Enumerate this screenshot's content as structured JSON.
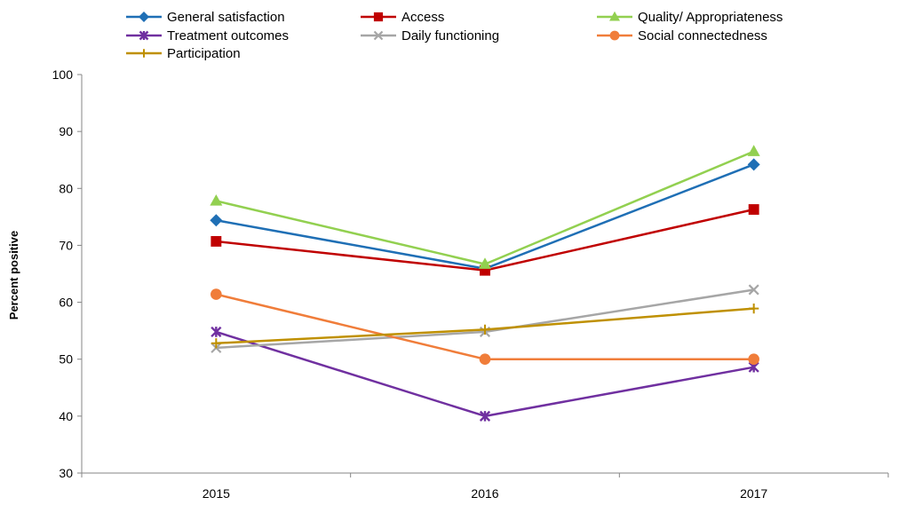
{
  "chart_data": {
    "type": "line",
    "title": "",
    "xlabel": "",
    "ylabel": "Percent positive",
    "categories": [
      "2015",
      "2016",
      "2017"
    ],
    "ylim": [
      30,
      100
    ],
    "yticks": [
      30,
      40,
      50,
      60,
      70,
      80,
      90,
      100
    ],
    "grid": false,
    "legend": "top",
    "series": [
      {
        "name": "General satisfaction",
        "values": [
          74.4,
          65.9,
          84.2
        ],
        "color": "#1f6fb5",
        "marker": "diamond"
      },
      {
        "name": "Access",
        "values": [
          70.7,
          65.6,
          76.3
        ],
        "color": "#c00000",
        "marker": "square"
      },
      {
        "name": "Quality/ Appropriateness",
        "values": [
          77.8,
          66.7,
          86.5
        ],
        "color": "#92d050",
        "marker": "triangle"
      },
      {
        "name": "Treatment outcomes",
        "values": [
          54.8,
          40.0,
          48.6
        ],
        "color": "#7030a0",
        "marker": "star"
      },
      {
        "name": "Daily functioning",
        "values": [
          52.0,
          54.8,
          62.2
        ],
        "color": "#a6a6a6",
        "marker": "x"
      },
      {
        "name": "Social connectedness",
        "values": [
          61.4,
          50.0,
          50.0
        ],
        "color": "#f07d3a",
        "marker": "circle"
      },
      {
        "name": "Participation",
        "values": [
          52.8,
          55.2,
          58.9
        ],
        "color": "#bf9000",
        "marker": "plus"
      }
    ]
  }
}
